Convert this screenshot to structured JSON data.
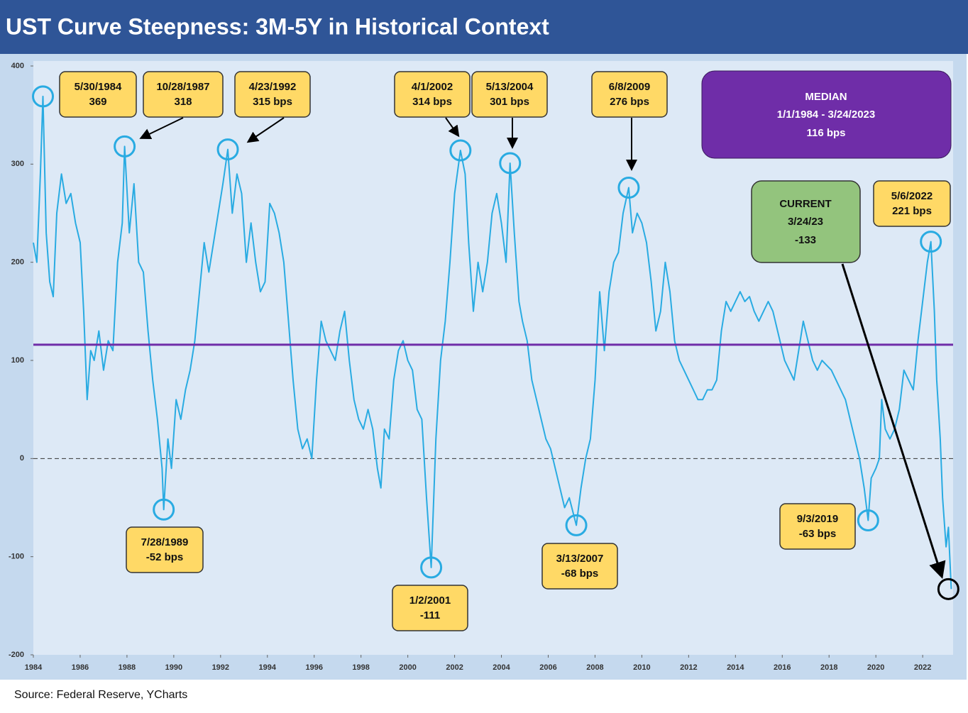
{
  "chart_data": {
    "type": "line",
    "title": "UST Curve Steepness: 3M-5Y in Historical Context",
    "source": "Source: Federal Reserve, YCharts",
    "series": [
      {
        "name": "3M-5Y",
        "color": "#29abe2",
        "x": [
          1984.0,
          1984.15,
          1984.3,
          1984.41,
          1984.55,
          1984.7,
          1984.85,
          1985.0,
          1985.2,
          1985.4,
          1985.6,
          1985.8,
          1986.0,
          1986.15,
          1986.3,
          1986.45,
          1986.6,
          1986.8,
          1987.0,
          1987.2,
          1987.4,
          1987.6,
          1987.8,
          1987.9,
          1988.1,
          1988.3,
          1988.5,
          1988.7,
          1988.9,
          1989.1,
          1989.3,
          1989.5,
          1989.57,
          1989.75,
          1989.9,
          1990.1,
          1990.3,
          1990.5,
          1990.7,
          1990.9,
          1991.1,
          1991.3,
          1991.5,
          1991.7,
          1991.9,
          1992.1,
          1992.31,
          1992.5,
          1992.7,
          1992.9,
          1993.1,
          1993.3,
          1993.5,
          1993.7,
          1993.9,
          1994.1,
          1994.3,
          1994.5,
          1994.7,
          1994.9,
          1995.1,
          1995.3,
          1995.5,
          1995.7,
          1995.9,
          1996.1,
          1996.3,
          1996.5,
          1996.7,
          1996.9,
          1997.1,
          1997.3,
          1997.5,
          1997.7,
          1997.9,
          1998.1,
          1998.3,
          1998.5,
          1998.7,
          1998.85,
          1999.0,
          1999.2,
          1999.4,
          1999.6,
          1999.8,
          2000.0,
          2000.2,
          2000.4,
          2000.6,
          2000.8,
          2001.0,
          2001.2,
          2001.4,
          2001.6,
          2001.8,
          2002.0,
          2002.25,
          2002.45,
          2002.6,
          2002.8,
          2003.0,
          2003.2,
          2003.4,
          2003.6,
          2003.8,
          2004.0,
          2004.2,
          2004.37,
          2004.55,
          2004.75,
          2004.9,
          2005.1,
          2005.3,
          2005.5,
          2005.7,
          2005.9,
          2006.1,
          2006.3,
          2006.5,
          2006.7,
          2006.9,
          2007.2,
          2007.4,
          2007.6,
          2007.8,
          2008.0,
          2008.2,
          2008.4,
          2008.6,
          2008.8,
          2009.0,
          2009.2,
          2009.44,
          2009.6,
          2009.8,
          2010.0,
          2010.2,
          2010.4,
          2010.6,
          2010.8,
          2011.0,
          2011.2,
          2011.4,
          2011.6,
          2011.8,
          2012.0,
          2012.2,
          2012.4,
          2012.6,
          2012.8,
          2013.0,
          2013.2,
          2013.4,
          2013.6,
          2013.8,
          2014.0,
          2014.2,
          2014.4,
          2014.6,
          2014.8,
          2015.0,
          2015.2,
          2015.4,
          2015.6,
          2015.8,
          2016.1,
          2016.3,
          2016.5,
          2016.7,
          2016.9,
          2017.1,
          2017.3,
          2017.5,
          2017.7,
          2017.9,
          2018.1,
          2018.3,
          2018.5,
          2018.7,
          2018.9,
          2019.1,
          2019.3,
          2019.5,
          2019.67,
          2019.8,
          2020.0,
          2020.15,
          2020.25,
          2020.4,
          2020.6,
          2020.8,
          2021.0,
          2021.2,
          2021.4,
          2021.6,
          2021.8,
          2022.0,
          2022.2,
          2022.35,
          2022.5,
          2022.6,
          2022.75,
          2022.85,
          2023.0,
          2023.1,
          2023.22
        ],
        "values": [
          220,
          200,
          290,
          369,
          230,
          180,
          165,
          250,
          290,
          260,
          270,
          240,
          220,
          150,
          60,
          110,
          100,
          130,
          90,
          120,
          110,
          200,
          240,
          318,
          230,
          280,
          200,
          190,
          130,
          80,
          40,
          -10,
          -52,
          20,
          -10,
          60,
          40,
          70,
          90,
          120,
          170,
          220,
          190,
          220,
          250,
          280,
          315,
          250,
          290,
          270,
          200,
          240,
          200,
          170,
          180,
          260,
          250,
          230,
          200,
          140,
          80,
          30,
          10,
          20,
          0,
          80,
          140,
          120,
          110,
          100,
          130,
          150,
          100,
          60,
          40,
          30,
          50,
          30,
          -10,
          -30,
          30,
          20,
          80,
          110,
          120,
          100,
          90,
          50,
          40,
          -40,
          -111,
          20,
          100,
          140,
          200,
          270,
          314,
          290,
          220,
          150,
          200,
          170,
          200,
          250,
          270,
          240,
          200,
          301,
          230,
          160,
          140,
          120,
          80,
          60,
          40,
          20,
          10,
          -10,
          -30,
          -50,
          -40,
          -68,
          -30,
          0,
          20,
          80,
          170,
          110,
          170,
          200,
          210,
          250,
          276,
          230,
          250,
          240,
          220,
          180,
          130,
          150,
          200,
          170,
          120,
          100,
          90,
          80,
          70,
          60,
          60,
          70,
          70,
          80,
          130,
          160,
          150,
          160,
          170,
          160,
          165,
          150,
          140,
          150,
          160,
          150,
          130,
          100,
          90,
          80,
          110,
          140,
          120,
          100,
          90,
          100,
          95,
          90,
          80,
          70,
          60,
          40,
          20,
          0,
          -30,
          -63,
          -20,
          -10,
          0,
          60,
          30,
          20,
          30,
          50,
          90,
          80,
          70,
          120,
          160,
          200,
          221,
          150,
          80,
          20,
          -40,
          -90,
          -70,
          -133
        ]
      }
    ],
    "xlim": [
      1984,
      2023.3
    ],
    "xticks": [
      1984,
      1986,
      1988,
      1990,
      1992,
      1994,
      1996,
      1998,
      2000,
      2002,
      2004,
      2006,
      2008,
      2010,
      2012,
      2014,
      2016,
      2018,
      2020,
      2022
    ],
    "ylim": [
      -200,
      400
    ],
    "yticks": [
      -200,
      -100,
      0,
      100,
      200,
      300,
      400
    ],
    "zero_line": true,
    "annotations": [
      {
        "date": "5/30/1984",
        "x": 1984.41,
        "value": 369
      },
      {
        "date": "10/28/1987",
        "x": 1987.9,
        "value": 318
      },
      {
        "date": "4/23/1992",
        "x": 1992.31,
        "value": 315,
        "value_label": "315 bps"
      },
      {
        "date": "4/1/2002",
        "x": 2002.25,
        "value": 314,
        "value_label": "314 bps"
      },
      {
        "date": "5/13/2004",
        "x": 2004.37,
        "value": 301,
        "value_label": "301 bps"
      },
      {
        "date": "6/8/2009",
        "x": 2009.44,
        "value": 276,
        "value_label": "276 bps"
      },
      {
        "date": "7/28/1989",
        "x": 1989.57,
        "value": -52,
        "value_label": "-52 bps"
      },
      {
        "date": "1/2/2001",
        "x": 2001.0,
        "value": -111
      },
      {
        "date": "3/13/2007",
        "x": 2007.2,
        "value": -68,
        "value_label": "-68 bps"
      },
      {
        "date": "9/3/2019",
        "x": 2019.67,
        "value": -63,
        "value_label": "-63 bps"
      },
      {
        "date": "5/6/2022",
        "x": 2022.35,
        "value": 221,
        "value_label": "221 bps"
      }
    ],
    "median": {
      "title": "MEDIAN",
      "period": "1/1/1984 - 3/24/2023",
      "value": 116,
      "value_label": "116 bps",
      "color": "#6f2da8"
    },
    "current": {
      "title": "CURRENT",
      "date": "3/24/23",
      "x": 2023.22,
      "value": -133
    }
  }
}
